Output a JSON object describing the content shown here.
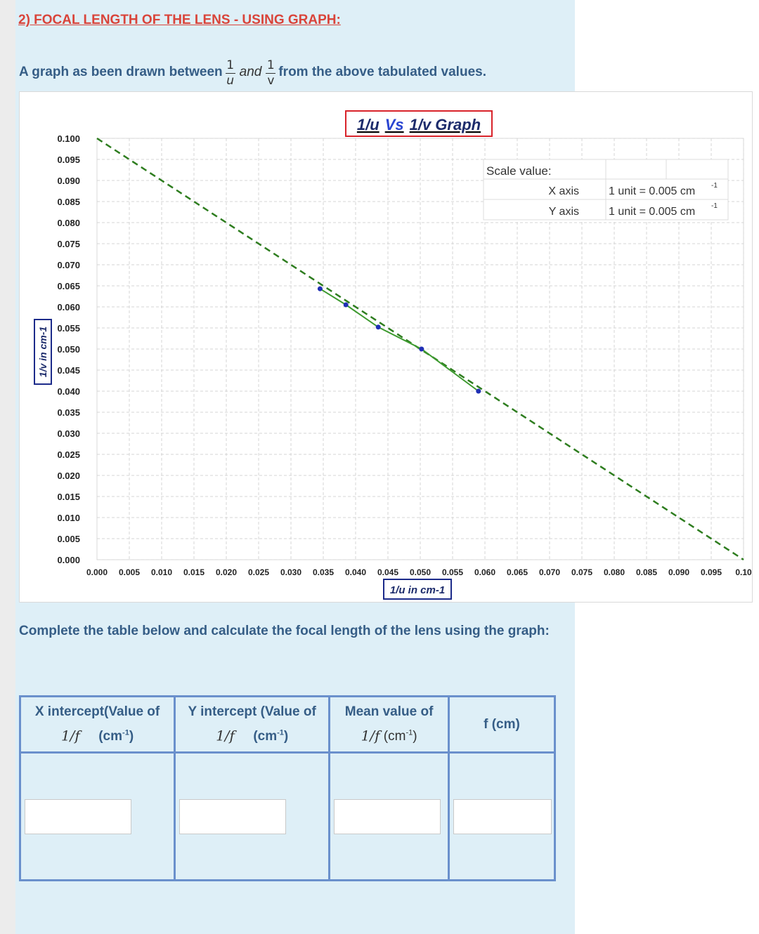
{
  "section_heading": "2) FOCAL LENGTH OF THE LENS - USING GRAPH:",
  "intro": {
    "prefix": "A graph as been drawn between",
    "frac1_num": "1",
    "frac1_den": "u",
    "and_word": "and",
    "frac2_num": "1",
    "frac2_den": "v",
    "suffix": "from the above tabulated values."
  },
  "chart_data": {
    "type": "scatter",
    "title_parts": [
      "1/u",
      "Vs",
      "1/v Graph"
    ],
    "xlabel": "1/u in cm-1",
    "ylabel": "1/v in cm-1",
    "xlim": [
      0,
      0.1
    ],
    "ylim": [
      0,
      0.1
    ],
    "x_ticks": [
      "0.000",
      "0.005",
      "0.010",
      "0.015",
      "0.020",
      "0.025",
      "0.030",
      "0.035",
      "0.040",
      "0.045",
      "0.050",
      "0.055",
      "0.060",
      "0.065",
      "0.070",
      "0.075",
      "0.080",
      "0.085",
      "0.090",
      "0.095",
      "0.10"
    ],
    "y_ticks": [
      "0.000",
      "0.005",
      "0.010",
      "0.015",
      "0.020",
      "0.025",
      "0.030",
      "0.035",
      "0.040",
      "0.045",
      "0.050",
      "0.055",
      "0.060",
      "0.065",
      "0.070",
      "0.075",
      "0.080",
      "0.085",
      "0.090",
      "0.095",
      "0.100"
    ],
    "grid": true,
    "points": [
      {
        "x": 0.0345,
        "y": 0.0643
      },
      {
        "x": 0.0385,
        "y": 0.0605
      },
      {
        "x": 0.0435,
        "y": 0.0552
      },
      {
        "x": 0.0502,
        "y": 0.05
      },
      {
        "x": 0.059,
        "y": 0.04
      }
    ],
    "extrapolation_line": {
      "from": [
        0.0,
        0.1
      ],
      "to": [
        0.1,
        0.0
      ]
    },
    "point_color": "#1f2fb5",
    "fit_color": "#3d9a2f",
    "dash_color": "#2e7d1f"
  },
  "scale_box": {
    "heading": "Scale value:",
    "rows": [
      {
        "axis": "X axis",
        "value": "1 unit = 0.005 cm",
        "sup": "-1"
      },
      {
        "axis": "Y axis",
        "value": "1 unit = 0.005 cm",
        "sup": "-1"
      }
    ]
  },
  "instruction": "Complete the table below and calculate the focal length of the lens using the graph:",
  "table": {
    "headers": [
      {
        "line1": "X intercept(Value of",
        "frac": "1/f",
        "unit": "(cm",
        "unit_sup": "-1",
        "unit_close": ")"
      },
      {
        "line1": "Y intercept (Value of",
        "frac": "1/f",
        "unit": "(cm",
        "unit_sup": "-1",
        "unit_close": ")"
      },
      {
        "line1": "Mean value of",
        "frac": "1/f",
        "unit": "(cm",
        "unit_sup": "-1",
        "unit_close": ")"
      },
      {
        "line1": "f (cm)"
      }
    ],
    "inputs": [
      {
        "value": "",
        "placeholder": ""
      },
      {
        "value": "",
        "placeholder": ""
      },
      {
        "value": "",
        "placeholder": ""
      },
      {
        "value": "",
        "placeholder": ""
      }
    ]
  }
}
